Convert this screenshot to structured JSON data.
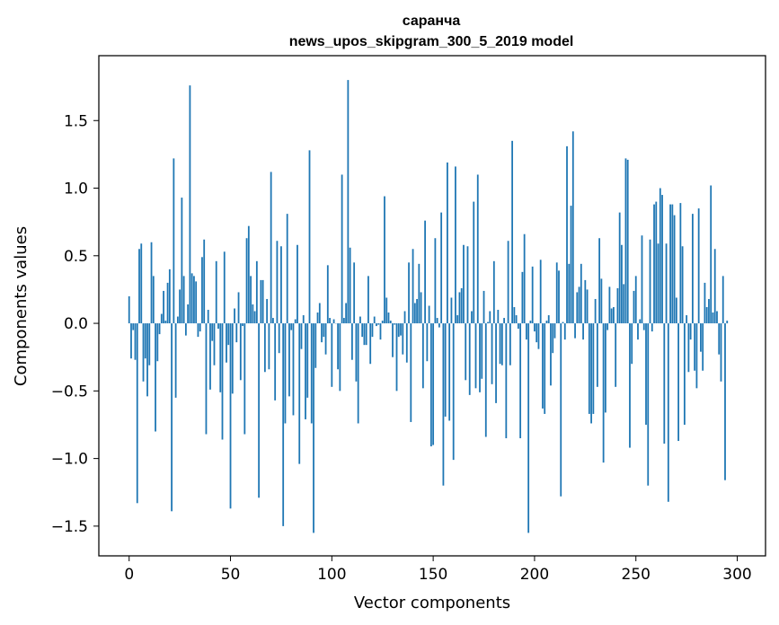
{
  "chart_data": {
    "type": "bar",
    "title": "саранча",
    "subtitle": "news_upos_skipgram_300_5_2019 model",
    "xlabel": "Vector components",
    "ylabel": "Components values",
    "xlim": [
      -14.95,
      313.95
    ],
    "ylim": [
      -1.72,
      1.98
    ],
    "xticks": [
      0,
      50,
      100,
      150,
      200,
      250,
      300
    ],
    "yticks": [
      -1.5,
      -1.0,
      -0.5,
      0.0,
      0.5,
      1.0,
      1.5
    ],
    "ytick_labels": [
      "−1.5",
      "−1.0",
      "−0.5",
      "0.0",
      "0.5",
      "1.0",
      "1.5"
    ],
    "grid": false,
    "bar_color": "#1f77b4",
    "values": [
      0.2,
      -0.26,
      -0.05,
      -0.27,
      -1.33,
      0.55,
      0.59,
      -0.43,
      -0.26,
      -0.54,
      -0.31,
      0.6,
      0.35,
      -0.8,
      -0.28,
      -0.08,
      0.07,
      0.24,
      0.02,
      0.3,
      0.4,
      -1.39,
      1.22,
      -0.55,
      0.05,
      0.25,
      0.93,
      0.35,
      -0.09,
      0.14,
      1.76,
      0.37,
      0.35,
      0.31,
      -0.1,
      -0.06,
      0.49,
      0.62,
      -0.82,
      0.1,
      -0.49,
      -0.13,
      -0.31,
      0.46,
      -0.04,
      -0.51,
      -0.86,
      0.53,
      -0.29,
      -0.16,
      -1.37,
      -0.52,
      0.11,
      -0.14,
      0.23,
      -0.42,
      -0.02,
      -0.82,
      0.63,
      0.72,
      0.35,
      0.14,
      0.09,
      0.46,
      -1.29,
      0.32,
      0.32,
      -0.36,
      0.18,
      -0.34,
      1.12,
      0.04,
      -0.57,
      0.61,
      -0.22,
      0.57,
      -1.5,
      -0.74,
      0.81,
      -0.54,
      -0.05,
      -0.68,
      0.03,
      0.58,
      -1.04,
      -0.19,
      0.06,
      -0.71,
      -0.55,
      1.28,
      -0.74,
      -1.55,
      -0.33,
      0.08,
      0.15,
      -0.14,
      -0.1,
      -0.23,
      0.43,
      0.04,
      -0.47,
      0.03,
      0.0,
      -0.34,
      -0.5,
      1.1,
      0.04,
      0.15,
      1.8,
      0.56,
      -0.27,
      0.45,
      -0.43,
      -0.74,
      0.05,
      -0.1,
      -0.16,
      -0.16,
      0.35,
      -0.3,
      -0.1,
      0.05,
      -0.02,
      -0.01,
      -0.12,
      0.02,
      0.94,
      0.19,
      0.08,
      0.02,
      -0.25,
      -0.01,
      -0.5,
      -0.1,
      -0.09,
      -0.23,
      0.09,
      -0.29,
      0.45,
      -0.73,
      0.55,
      0.15,
      0.18,
      0.44,
      0.23,
      -0.48,
      0.76,
      -0.28,
      0.13,
      -0.91,
      -0.9,
      0.63,
      0.04,
      -0.03,
      0.82,
      -1.2,
      -0.69,
      1.19,
      -0.72,
      0.19,
      -1.01,
      1.16,
      0.06,
      0.23,
      0.26,
      0.58,
      -0.42,
      0.57,
      -0.53,
      0.09,
      0.9,
      -0.48,
      1.1,
      -0.51,
      -0.41,
      0.24,
      -0.84,
      0.01,
      0.09,
      -0.45,
      0.46,
      -0.59,
      0.1,
      -0.3,
      -0.31,
      0.04,
      -0.85,
      0.61,
      -0.31,
      1.35,
      0.12,
      0.06,
      -0.04,
      -0.85,
      0.38,
      0.66,
      -0.12,
      -1.55,
      0.02,
      0.42,
      -0.06,
      -0.14,
      -0.19,
      0.47,
      -0.63,
      -0.67,
      0.02,
      0.06,
      -0.46,
      -0.22,
      -0.11,
      0.45,
      0.39,
      -1.28,
      0.01,
      -0.12,
      1.31,
      0.44,
      0.87,
      1.42,
      -0.11,
      0.23,
      0.27,
      0.44,
      -0.12,
      0.32,
      0.25,
      -0.67,
      -0.74,
      -0.67,
      0.18,
      -0.47,
      0.63,
      0.33,
      -1.03,
      -0.66,
      -0.05,
      0.27,
      0.11,
      0.12,
      -0.47,
      0.26,
      0.82,
      0.58,
      0.29,
      1.22,
      1.21,
      -0.92,
      -0.3,
      0.24,
      0.35,
      -0.12,
      0.03,
      0.65,
      -0.05,
      -0.75,
      -1.2,
      0.62,
      -0.06,
      0.88,
      0.9,
      0.59,
      1.0,
      0.95,
      -0.89,
      0.59,
      -1.32,
      0.88,
      0.88,
      0.8,
      0.19,
      -0.87,
      0.89,
      0.57,
      -0.75,
      0.06,
      -0.36,
      -0.12,
      0.81,
      -0.35,
      -0.48,
      0.85,
      -0.21,
      -0.35,
      0.3,
      0.12,
      0.18,
      1.02,
      0.08,
      0.55,
      0.09,
      -0.23,
      -0.43,
      0.35,
      -1.16,
      0.02
    ]
  }
}
